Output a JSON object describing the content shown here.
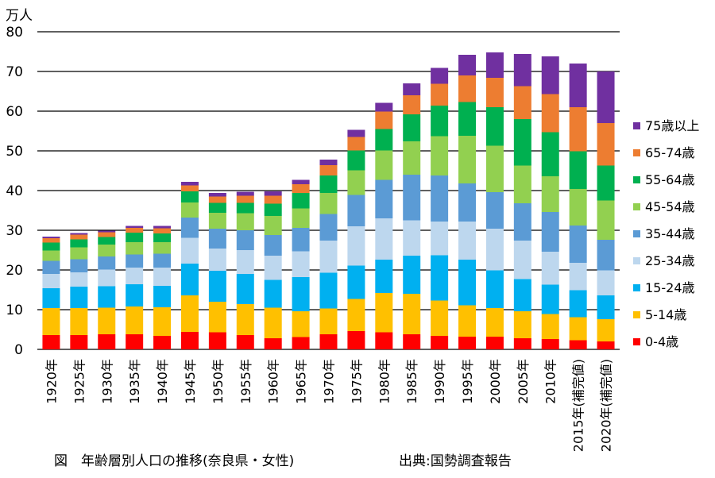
{
  "chart_data": {
    "type": "bar",
    "stacked": true,
    "unit": "万人",
    "title": "図　年齢層別人口の推移(奈良県・女性)",
    "source": "出典:国勢調査報告",
    "ylim": [
      0,
      80
    ],
    "yticks": [
      0,
      10,
      20,
      30,
      40,
      50,
      60,
      70,
      80
    ],
    "grid": true,
    "legend_position": "right",
    "categories": [
      "1920年",
      "1925年",
      "1930年",
      "1935年",
      "1940年",
      "1945年",
      "1950年",
      "1955年",
      "1960年",
      "1965年",
      "1970年",
      "1975年",
      "1980年",
      "1985年",
      "1990年",
      "1995年",
      "2000年",
      "2005年",
      "2010年",
      "2015年(補完値)",
      "2020年(補完値)"
    ],
    "series": [
      {
        "name": "0-4歳",
        "color": "#ff0000",
        "values": [
          3.6,
          3.6,
          3.8,
          3.8,
          3.4,
          4.4,
          4.3,
          3.6,
          2.8,
          3.1,
          3.8,
          4.6,
          4.3,
          3.8,
          3.4,
          3.2,
          3.2,
          2.8,
          2.6,
          2.3,
          2.0
        ]
      },
      {
        "name": "5-14歳",
        "color": "#ffc000",
        "values": [
          6.8,
          6.8,
          6.7,
          7.0,
          7.2,
          9.2,
          7.7,
          7.8,
          7.7,
          6.5,
          6.5,
          8.1,
          9.9,
          10.2,
          8.9,
          7.9,
          7.2,
          6.8,
          6.3,
          5.8,
          5.6
        ]
      },
      {
        "name": "15-24歳",
        "color": "#00b0f0",
        "values": [
          5.0,
          5.4,
          5.4,
          5.6,
          5.4,
          8.0,
          7.8,
          7.6,
          7.0,
          8.6,
          9.0,
          8.4,
          8.4,
          9.6,
          11.4,
          11.5,
          9.5,
          8.1,
          7.4,
          6.8,
          6.0
        ]
      },
      {
        "name": "25-34歳",
        "color": "#bdd7ee",
        "values": [
          3.6,
          3.6,
          4.2,
          4.2,
          4.6,
          6.5,
          5.6,
          6.0,
          6.1,
          6.5,
          8.1,
          9.9,
          10.4,
          8.9,
          8.5,
          9.6,
          10.5,
          9.7,
          8.3,
          6.9,
          6.3
        ]
      },
      {
        "name": "35-44歳",
        "color": "#5b9bd5",
        "values": [
          3.3,
          3.3,
          3.3,
          3.3,
          3.5,
          5.1,
          5.0,
          5.0,
          5.2,
          5.9,
          6.7,
          7.9,
          9.7,
          11.5,
          11.6,
          9.6,
          9.2,
          9.4,
          10.0,
          9.4,
          7.7
        ]
      },
      {
        "name": "45-54歳",
        "color": "#92d050",
        "values": [
          2.6,
          3.0,
          3.0,
          3.1,
          2.9,
          3.8,
          4.0,
          4.3,
          4.8,
          4.9,
          5.3,
          6.2,
          7.4,
          8.4,
          9.9,
          12.0,
          11.7,
          9.5,
          9.0,
          9.2,
          9.9
        ]
      },
      {
        "name": "55-64歳",
        "color": "#00b050",
        "values": [
          2.0,
          2.0,
          1.9,
          2.4,
          2.2,
          2.8,
          2.5,
          2.6,
          3.1,
          3.9,
          4.4,
          5.0,
          5.4,
          6.8,
          7.7,
          8.5,
          9.7,
          11.7,
          11.1,
          9.5,
          8.8
        ]
      },
      {
        "name": "65-74歳",
        "color": "#ed7d31",
        "values": [
          1.1,
          1.2,
          1.2,
          1.2,
          1.3,
          1.5,
          1.6,
          1.8,
          2.0,
          2.2,
          2.6,
          3.4,
          4.4,
          4.8,
          5.5,
          6.7,
          7.4,
          8.3,
          9.6,
          11.1,
          10.7
        ]
      },
      {
        "name": "75歳以上",
        "color": "#7030a0",
        "values": [
          0.4,
          0.4,
          0.4,
          0.5,
          0.6,
          0.9,
          0.9,
          1.0,
          1.1,
          1.1,
          1.4,
          1.8,
          2.2,
          3.0,
          4.0,
          5.2,
          6.4,
          8.1,
          9.5,
          11.0,
          13.0
        ]
      }
    ]
  }
}
